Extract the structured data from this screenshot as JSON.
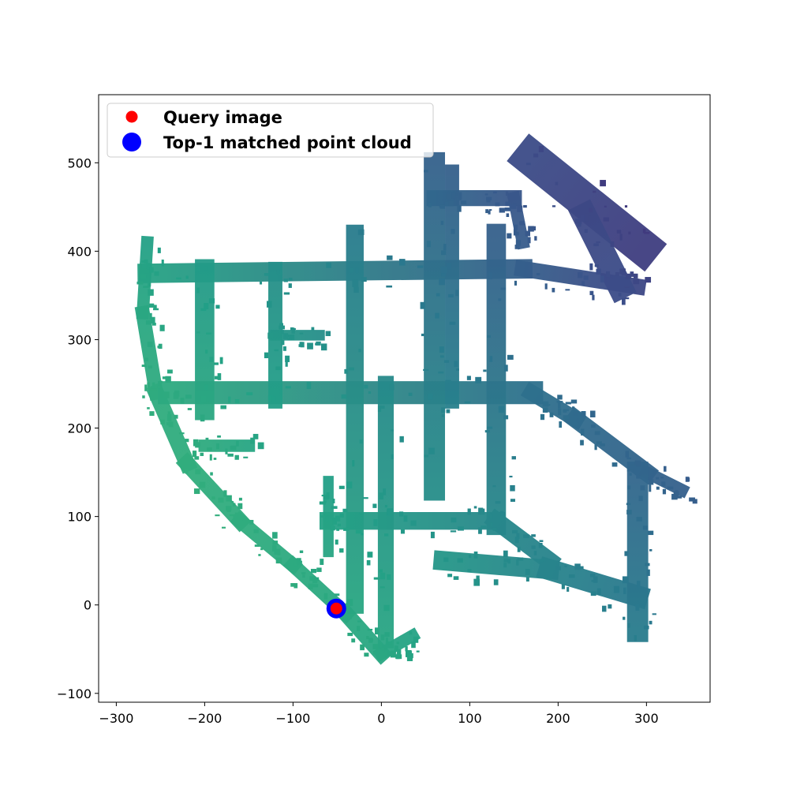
{
  "chart_data": {
    "type": "scatter",
    "title": "",
    "xlabel": "",
    "ylabel": "",
    "xlim": [
      -320,
      372
    ],
    "ylim": [
      -110,
      577
    ],
    "x_ticks": [
      -300,
      -200,
      -100,
      0,
      100,
      200,
      300
    ],
    "y_ticks": [
      -100,
      0,
      100,
      200,
      300,
      400,
      500
    ],
    "x_tick_labels": [
      "−300",
      "−200",
      "−100",
      "0",
      "100",
      "200",
      "300"
    ],
    "y_tick_labels": [
      "−100",
      "0",
      "100",
      "200",
      "300",
      "400",
      "500"
    ],
    "grid": false,
    "legend": {
      "placement": "upper-left",
      "entries": [
        {
          "label": "Query image",
          "color": "#ff0000",
          "marker": "small-circle"
        },
        {
          "label": "Top-1 matched point cloud",
          "color": "#0000ff",
          "marker": "large-circle"
        }
      ]
    },
    "colormap": "viridis",
    "point_cloud_segments": [
      {
        "from": [
          -265,
          410
        ],
        "to": [
          -270,
          330
        ],
        "width": 14
      },
      {
        "from": [
          -270,
          330
        ],
        "to": [
          -255,
          240
        ],
        "width": 16
      },
      {
        "from": [
          -255,
          240
        ],
        "to": [
          -220,
          160
        ],
        "width": 18
      },
      {
        "from": [
          -220,
          160
        ],
        "to": [
          -160,
          95
        ],
        "width": 18
      },
      {
        "from": [
          -160,
          95
        ],
        "to": [
          -100,
          45
        ],
        "width": 16
      },
      {
        "from": [
          -100,
          45
        ],
        "to": [
          -40,
          -10
        ],
        "width": 16
      },
      {
        "from": [
          -40,
          -10
        ],
        "to": [
          0,
          -55
        ],
        "width": 18
      },
      {
        "from": [
          0,
          -55
        ],
        "to": [
          35,
          -35
        ],
        "width": 14
      },
      {
        "from": [
          -265,
          375
        ],
        "to": [
          160,
          380
        ],
        "width": 22
      },
      {
        "from": [
          160,
          380
        ],
        "to": [
          290,
          360
        ],
        "width": 18
      },
      {
        "from": [
          170,
          505
        ],
        "to": [
          295,
          405
        ],
        "width": 40
      },
      {
        "from": [
          230,
          440
        ],
        "to": [
          270,
          360
        ],
        "width": 28
      },
      {
        "from": [
          -240,
          240
        ],
        "to": [
          170,
          240
        ],
        "width": 26
      },
      {
        "from": [
          170,
          240
        ],
        "to": [
          220,
          210
        ],
        "width": 18
      },
      {
        "from": [
          220,
          210
        ],
        "to": [
          300,
          150
        ],
        "width": 20
      },
      {
        "from": [
          300,
          150
        ],
        "to": [
          340,
          130
        ],
        "width": 14
      },
      {
        "from": [
          -120,
          305
        ],
        "to": [
          -70,
          305
        ],
        "width": 12
      },
      {
        "from": [
          -200,
          380
        ],
        "to": [
          -200,
          220
        ],
        "width": 22
      },
      {
        "from": [
          -120,
          380
        ],
        "to": [
          -120,
          230
        ],
        "width": 16
      },
      {
        "from": [
          -30,
          420
        ],
        "to": [
          -30,
          0
        ],
        "width": 20
      },
      {
        "from": [
          5,
          250
        ],
        "to": [
          5,
          -40
        ],
        "width": 18
      },
      {
        "from": [
          60,
          500
        ],
        "to": [
          60,
          130
        ],
        "width": 24
      },
      {
        "from": [
          80,
          490
        ],
        "to": [
          80,
          230
        ],
        "width": 16
      },
      {
        "from": [
          130,
          420
        ],
        "to": [
          130,
          90
        ],
        "width": 22
      },
      {
        "from": [
          60,
          460
        ],
        "to": [
          150,
          460
        ],
        "width": 18
      },
      {
        "from": [
          150,
          460
        ],
        "to": [
          160,
          410
        ],
        "width": 14
      },
      {
        "from": [
          -60,
          95
        ],
        "to": [
          130,
          95
        ],
        "width": 20
      },
      {
        "from": [
          130,
          95
        ],
        "to": [
          190,
          50
        ],
        "width": 20
      },
      {
        "from": [
          70,
          50
        ],
        "to": [
          190,
          40
        ],
        "width": 22
      },
      {
        "from": [
          190,
          40
        ],
        "to": [
          290,
          10
        ],
        "width": 24
      },
      {
        "from": [
          290,
          150
        ],
        "to": [
          290,
          -30
        ],
        "width": 24
      },
      {
        "from": [
          -60,
          60
        ],
        "to": [
          -60,
          140
        ],
        "width": 12
      },
      {
        "from": [
          -200,
          180
        ],
        "to": [
          -150,
          180
        ],
        "width": 14
      }
    ],
    "points": [
      {
        "series": "Top-1 matched point cloud",
        "x": -51,
        "y": -4,
        "color": "#0000ff"
      },
      {
        "series": "Query image",
        "x": -51,
        "y": -4,
        "color": "#ff0000"
      }
    ]
  }
}
